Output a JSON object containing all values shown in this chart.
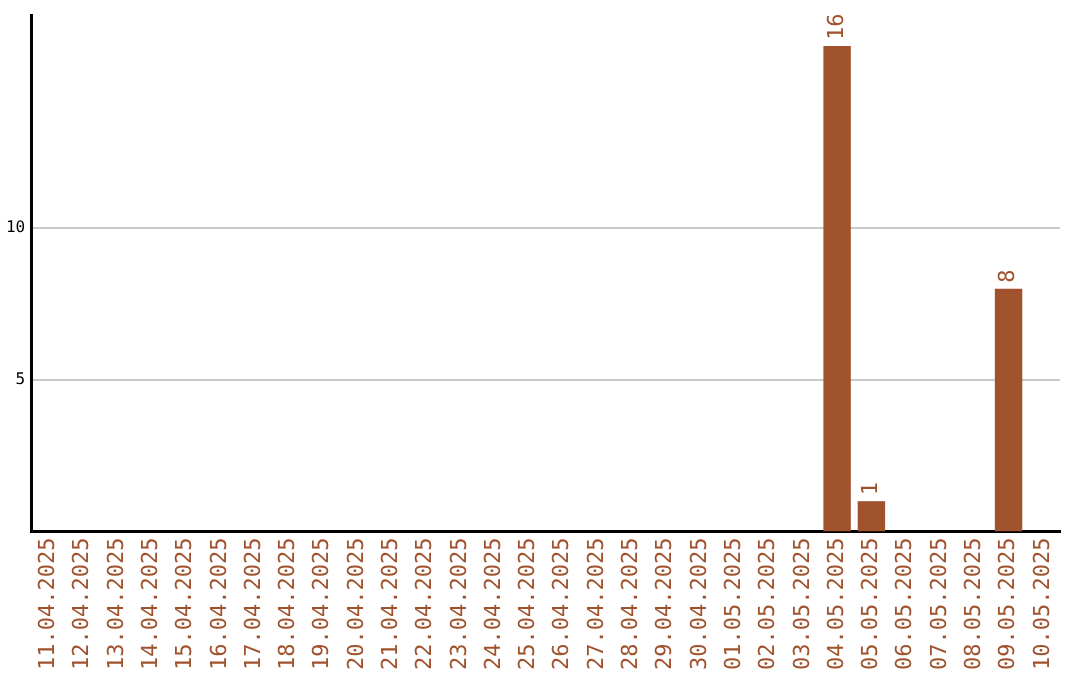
{
  "chart_data": {
    "type": "bar",
    "categories": [
      "11.04.2025",
      "12.04.2025",
      "13.04.2025",
      "14.04.2025",
      "15.04.2025",
      "16.04.2025",
      "17.04.2025",
      "18.04.2025",
      "19.04.2025",
      "20.04.2025",
      "21.04.2025",
      "22.04.2025",
      "23.04.2025",
      "24.04.2025",
      "25.04.2025",
      "26.04.2025",
      "27.04.2025",
      "28.04.2025",
      "29.04.2025",
      "30.04.2025",
      "01.05.2025",
      "02.05.2025",
      "03.05.2025",
      "04.05.2025",
      "05.05.2025",
      "06.05.2025",
      "07.05.2025",
      "08.05.2025",
      "09.05.2025",
      "10.05.2025"
    ],
    "values": [
      null,
      null,
      null,
      null,
      null,
      null,
      null,
      null,
      null,
      null,
      null,
      null,
      null,
      null,
      null,
      null,
      null,
      null,
      null,
      null,
      null,
      null,
      null,
      16,
      1,
      null,
      null,
      null,
      8,
      null
    ],
    "color": "#a0522d",
    "ylim": [
      0,
      17
    ],
    "yticks": [
      5,
      10
    ],
    "grid": "y",
    "legend": false,
    "data_labels": true
  }
}
